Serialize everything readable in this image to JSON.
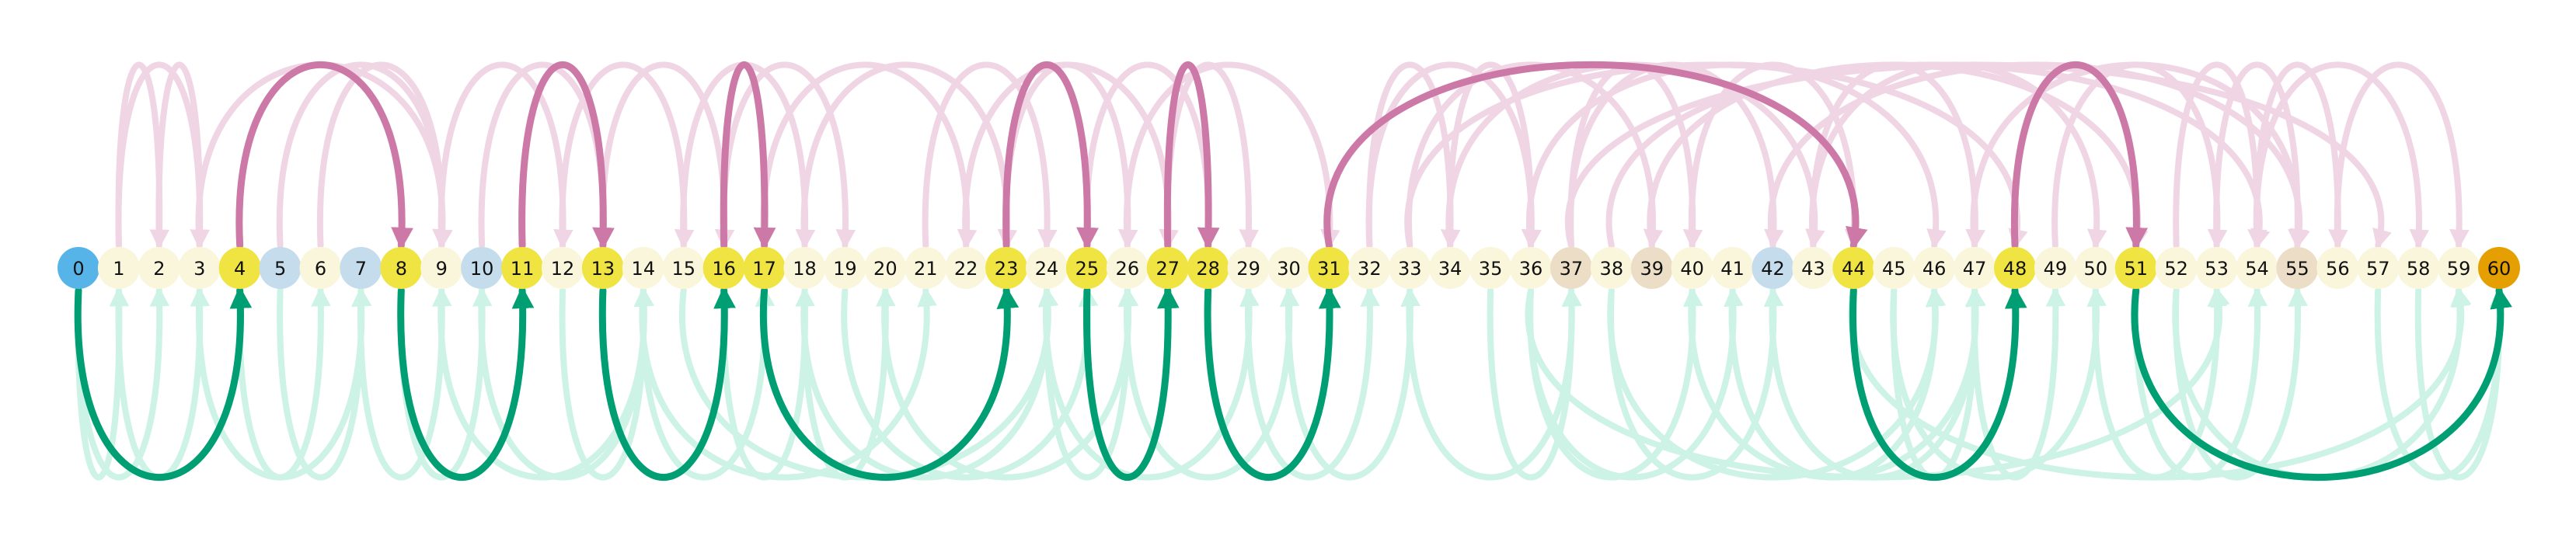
{
  "colors": {
    "start": "#56B4E9",
    "goal": "#E69F00",
    "path": "#F0E442",
    "visited": "#FAF6DC",
    "frontier": "#C4DCEC",
    "dead": "#EBDDC6",
    "forward_arc": "#009E73",
    "backward_arc": "#CC79A7",
    "forward_faded": "#CDF2E6",
    "backward_faded": "#F0D6E5"
  },
  "nodes": [
    {
      "id": 0,
      "state": "start"
    },
    {
      "id": 1,
      "state": "visited"
    },
    {
      "id": 2,
      "state": "visited"
    },
    {
      "id": 3,
      "state": "visited"
    },
    {
      "id": 4,
      "state": "path"
    },
    {
      "id": 5,
      "state": "frontier"
    },
    {
      "id": 6,
      "state": "visited"
    },
    {
      "id": 7,
      "state": "frontier"
    },
    {
      "id": 8,
      "state": "path"
    },
    {
      "id": 9,
      "state": "visited"
    },
    {
      "id": 10,
      "state": "frontier"
    },
    {
      "id": 11,
      "state": "path"
    },
    {
      "id": 12,
      "state": "visited"
    },
    {
      "id": 13,
      "state": "path"
    },
    {
      "id": 14,
      "state": "visited"
    },
    {
      "id": 15,
      "state": "visited"
    },
    {
      "id": 16,
      "state": "path"
    },
    {
      "id": 17,
      "state": "path"
    },
    {
      "id": 18,
      "state": "visited"
    },
    {
      "id": 19,
      "state": "visited"
    },
    {
      "id": 20,
      "state": "visited"
    },
    {
      "id": 21,
      "state": "visited"
    },
    {
      "id": 22,
      "state": "visited"
    },
    {
      "id": 23,
      "state": "path"
    },
    {
      "id": 24,
      "state": "visited"
    },
    {
      "id": 25,
      "state": "path"
    },
    {
      "id": 26,
      "state": "visited"
    },
    {
      "id": 27,
      "state": "path"
    },
    {
      "id": 28,
      "state": "path"
    },
    {
      "id": 29,
      "state": "visited"
    },
    {
      "id": 30,
      "state": "visited"
    },
    {
      "id": 31,
      "state": "path"
    },
    {
      "id": 32,
      "state": "visited"
    },
    {
      "id": 33,
      "state": "visited"
    },
    {
      "id": 34,
      "state": "visited"
    },
    {
      "id": 35,
      "state": "visited"
    },
    {
      "id": 36,
      "state": "visited"
    },
    {
      "id": 37,
      "state": "dead"
    },
    {
      "id": 38,
      "state": "visited"
    },
    {
      "id": 39,
      "state": "dead"
    },
    {
      "id": 40,
      "state": "visited"
    },
    {
      "id": 41,
      "state": "visited"
    },
    {
      "id": 42,
      "state": "frontier"
    },
    {
      "id": 43,
      "state": "visited"
    },
    {
      "id": 44,
      "state": "path"
    },
    {
      "id": 45,
      "state": "visited"
    },
    {
      "id": 46,
      "state": "visited"
    },
    {
      "id": 47,
      "state": "visited"
    },
    {
      "id": 48,
      "state": "path"
    },
    {
      "id": 49,
      "state": "visited"
    },
    {
      "id": 50,
      "state": "visited"
    },
    {
      "id": 51,
      "state": "path"
    },
    {
      "id": 52,
      "state": "visited"
    },
    {
      "id": 53,
      "state": "visited"
    },
    {
      "id": 54,
      "state": "visited"
    },
    {
      "id": 55,
      "state": "dead"
    },
    {
      "id": 56,
      "state": "visited"
    },
    {
      "id": 57,
      "state": "visited"
    },
    {
      "id": 58,
      "state": "visited"
    },
    {
      "id": 59,
      "state": "visited"
    },
    {
      "id": 60,
      "state": "goal"
    }
  ],
  "path_arcs": [
    {
      "from": 0,
      "to": 4,
      "dir": "forward"
    },
    {
      "from": 4,
      "to": 8,
      "dir": "backward"
    },
    {
      "from": 8,
      "to": 11,
      "dir": "forward"
    },
    {
      "from": 11,
      "to": 13,
      "dir": "backward"
    },
    {
      "from": 13,
      "to": 16,
      "dir": "forward"
    },
    {
      "from": 16,
      "to": 17,
      "dir": "backward"
    },
    {
      "from": 17,
      "to": 23,
      "dir": "forward"
    },
    {
      "from": 23,
      "to": 25,
      "dir": "backward"
    },
    {
      "from": 25,
      "to": 27,
      "dir": "forward"
    },
    {
      "from": 27,
      "to": 28,
      "dir": "backward"
    },
    {
      "from": 28,
      "to": 31,
      "dir": "forward"
    },
    {
      "from": 31,
      "to": 44,
      "dir": "backward"
    },
    {
      "from": 44,
      "to": 48,
      "dir": "forward"
    },
    {
      "from": 48,
      "to": 51,
      "dir": "backward"
    },
    {
      "from": 51,
      "to": 60,
      "dir": "forward"
    }
  ],
  "faded_arcs": [
    {
      "from": 1,
      "to": 3,
      "dir": "backward"
    },
    {
      "from": 2,
      "to": 3,
      "dir": "backward"
    },
    {
      "from": 1,
      "to": 2,
      "dir": "backward"
    },
    {
      "from": 0,
      "to": 1,
      "dir": "forward"
    },
    {
      "from": 0,
      "to": 2,
      "dir": "forward"
    },
    {
      "from": 1,
      "to": 3,
      "dir": "forward"
    },
    {
      "from": 4,
      "to": 6,
      "dir": "forward"
    },
    {
      "from": 5,
      "to": 7,
      "dir": "forward"
    },
    {
      "from": 3,
      "to": 7,
      "dir": "forward"
    },
    {
      "from": 3,
      "to": 9,
      "dir": "backward"
    },
    {
      "from": 7,
      "to": 9,
      "dir": "forward"
    },
    {
      "from": 8,
      "to": 10,
      "dir": "forward"
    },
    {
      "from": 6,
      "to": 9,
      "dir": "backward"
    },
    {
      "from": 5,
      "to": 9,
      "dir": "backward"
    },
    {
      "from": 9,
      "to": 14,
      "dir": "forward"
    },
    {
      "from": 10,
      "to": 14,
      "dir": "forward"
    },
    {
      "from": 9,
      "to": 12,
      "dir": "backward"
    },
    {
      "from": 10,
      "to": 13,
      "dir": "backward"
    },
    {
      "from": 12,
      "to": 15,
      "dir": "backward"
    },
    {
      "from": 12,
      "to": 14,
      "dir": "forward"
    },
    {
      "from": 13,
      "to": 16,
      "dir": "backward"
    },
    {
      "from": 14,
      "to": 17,
      "dir": "forward"
    },
    {
      "from": 15,
      "to": 18,
      "dir": "backward"
    },
    {
      "from": 16,
      "to": 19,
      "dir": "backward"
    },
    {
      "from": 14,
      "to": 21,
      "dir": "forward"
    },
    {
      "from": 16,
      "to": 18,
      "dir": "forward"
    },
    {
      "from": 15,
      "to": 24,
      "dir": "forward"
    },
    {
      "from": 18,
      "to": 20,
      "dir": "forward"
    },
    {
      "from": 17,
      "to": 22,
      "dir": "backward"
    },
    {
      "from": 18,
      "to": 23,
      "dir": "backward"
    },
    {
      "from": 18,
      "to": 24,
      "dir": "forward"
    },
    {
      "from": 19,
      "to": 25,
      "dir": "forward"
    },
    {
      "from": 20,
      "to": 26,
      "dir": "forward"
    },
    {
      "from": 21,
      "to": 24,
      "dir": "backward"
    },
    {
      "from": 22,
      "to": 27,
      "dir": "backward"
    },
    {
      "from": 23,
      "to": 26,
      "dir": "backward"
    },
    {
      "from": 24,
      "to": 26,
      "dir": "forward"
    },
    {
      "from": 24,
      "to": 29,
      "dir": "forward"
    },
    {
      "from": 25,
      "to": 28,
      "dir": "backward"
    },
    {
      "from": 26,
      "to": 30,
      "dir": "forward"
    },
    {
      "from": 27,
      "to": 29,
      "dir": "backward"
    },
    {
      "from": 26,
      "to": 31,
      "dir": "backward"
    },
    {
      "from": 29,
      "to": 32,
      "dir": "forward"
    },
    {
      "from": 30,
      "to": 33,
      "dir": "forward"
    },
    {
      "from": 32,
      "to": 34,
      "dir": "backward"
    },
    {
      "from": 32,
      "to": 36,
      "dir": "backward"
    },
    {
      "from": 33,
      "to": 37,
      "dir": "forward"
    },
    {
      "from": 34,
      "to": 36,
      "dir": "backward"
    },
    {
      "from": 33,
      "to": 39,
      "dir": "backward"
    },
    {
      "from": 36,
      "to": 40,
      "dir": "forward"
    },
    {
      "from": 35,
      "to": 37,
      "dir": "forward"
    },
    {
      "from": 34,
      "to": 43,
      "dir": "backward"
    },
    {
      "from": 36,
      "to": 41,
      "dir": "forward"
    },
    {
      "from": 37,
      "to": 40,
      "dir": "backward"
    },
    {
      "from": 36,
      "to": 46,
      "dir": "backward"
    },
    {
      "from": 38,
      "to": 42,
      "dir": "forward"
    },
    {
      "from": 37,
      "to": 42,
      "dir": "backward"
    },
    {
      "from": 38,
      "to": 46,
      "dir": "forward"
    },
    {
      "from": 33,
      "to": 48,
      "dir": "backward"
    },
    {
      "from": 40,
      "to": 44,
      "dir": "backward"
    },
    {
      "from": 40,
      "to": 47,
      "dir": "forward"
    },
    {
      "from": 41,
      "to": 46,
      "dir": "forward"
    },
    {
      "from": 43,
      "to": 47,
      "dir": "backward"
    },
    {
      "from": 45,
      "to": 47,
      "dir": "forward"
    },
    {
      "from": 42,
      "to": 47,
      "dir": "forward"
    },
    {
      "from": 43,
      "to": 50,
      "dir": "backward"
    },
    {
      "from": 36,
      "to": 53,
      "dir": "forward"
    },
    {
      "from": 38,
      "to": 54,
      "dir": "backward"
    },
    {
      "from": 45,
      "to": 50,
      "dir": "forward"
    },
    {
      "from": 47,
      "to": 49,
      "dir": "forward"
    },
    {
      "from": 47,
      "to": 55,
      "dir": "backward"
    },
    {
      "from": 49,
      "to": 53,
      "dir": "backward"
    },
    {
      "from": 50,
      "to": 53,
      "dir": "forward"
    },
    {
      "from": 52,
      "to": 54,
      "dir": "backward"
    },
    {
      "from": 51,
      "to": 54,
      "dir": "forward"
    },
    {
      "from": 52,
      "to": 55,
      "dir": "forward"
    },
    {
      "from": 53,
      "to": 55,
      "dir": "backward"
    },
    {
      "from": 54,
      "to": 56,
      "dir": "backward"
    },
    {
      "from": 54,
      "to": 58,
      "dir": "backward"
    },
    {
      "from": 52,
      "to": 59,
      "dir": "forward"
    },
    {
      "from": 56,
      "to": 59,
      "dir": "backward"
    },
    {
      "from": 58,
      "to": 60,
      "dir": "forward"
    },
    {
      "from": 57,
      "to": 60,
      "dir": "forward"
    },
    {
      "from": 42,
      "to": 55,
      "dir": "backward"
    },
    {
      "from": 44,
      "to": 59,
      "dir": "forward"
    },
    {
      "from": 39,
      "to": 51,
      "dir": "backward"
    },
    {
      "from": 37,
      "to": 57,
      "dir": "backward"
    }
  ]
}
